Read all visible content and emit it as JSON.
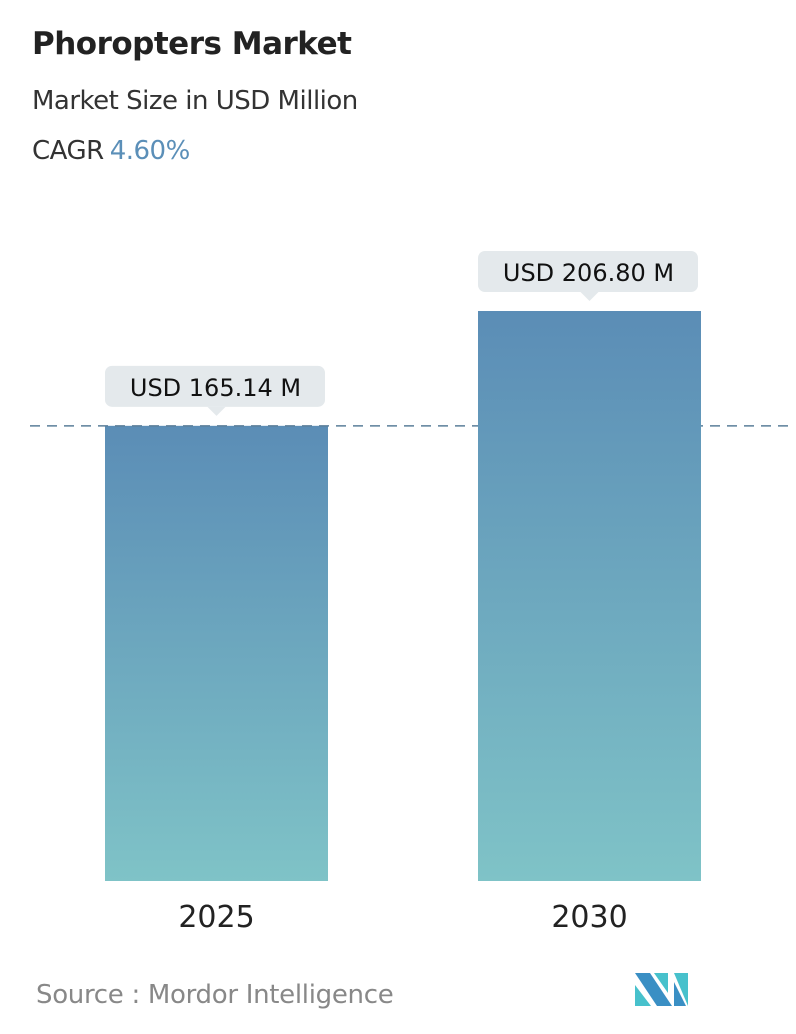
{
  "header": {
    "title": "Phoropters Market",
    "subtitle": "Market Size in USD Million",
    "cagr_label": "CAGR",
    "cagr_value": "4.60%"
  },
  "chart_data": {
    "type": "bar",
    "categories": [
      "2025",
      "2030"
    ],
    "values": [
      165.14,
      206.8
    ],
    "data_labels": [
      "USD 165.14 M",
      "USD 206.80 M"
    ],
    "ylim": [
      0,
      206.8
    ],
    "reference_line": 165.14,
    "grid": false,
    "colors": {
      "bar_top": "#5b8db6",
      "bar_bottom": "#7fc3c7",
      "label_bg": "#e4e9ec",
      "dashed_line": "#5b7f99"
    }
  },
  "footer": {
    "source": "Source :  Mordor Intelligence",
    "logo_text": "MI"
  }
}
